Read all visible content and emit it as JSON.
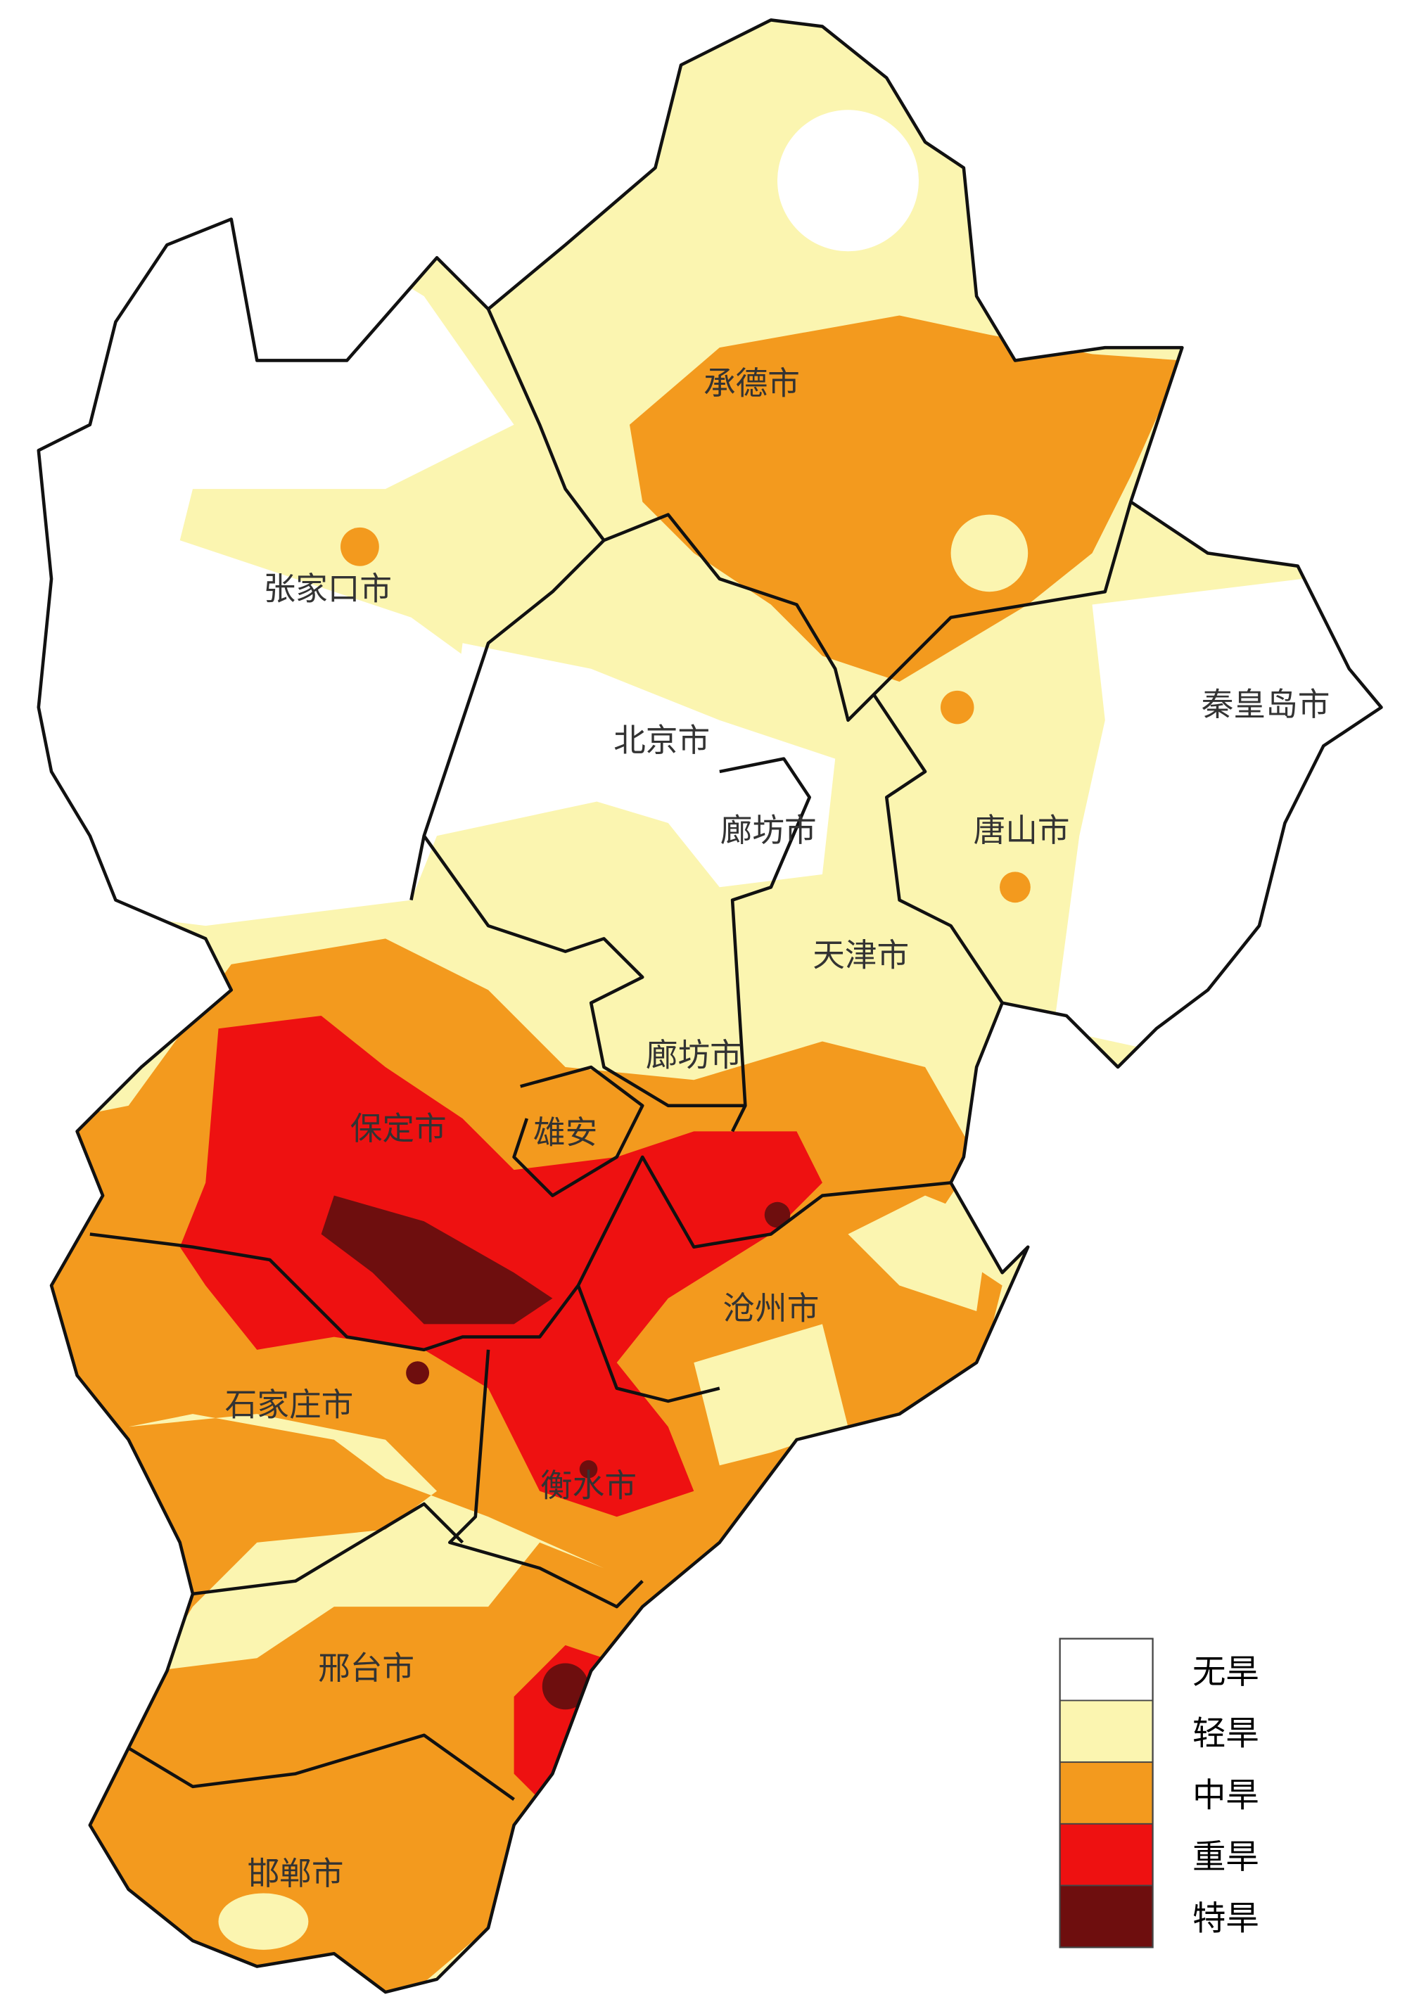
{
  "map": {
    "regions": [
      {
        "label": "承德市"
      },
      {
        "label": "张家口市"
      },
      {
        "label": "北京市"
      },
      {
        "label": "秦皇岛市"
      },
      {
        "label": "廊坊市"
      },
      {
        "label": "唐山市"
      },
      {
        "label": "天津市"
      },
      {
        "label": "廊坊市"
      },
      {
        "label": "保定市"
      },
      {
        "label": "雄安"
      },
      {
        "label": "沧州市"
      },
      {
        "label": "石家庄市"
      },
      {
        "label": "衡水市"
      },
      {
        "label": "邢台市"
      },
      {
        "label": "邯郸市"
      }
    ]
  },
  "legend": [
    {
      "label": "无旱",
      "color": "#ffffff"
    },
    {
      "label": "轻旱",
      "color": "#fbf5b0"
    },
    {
      "label": "中旱",
      "color": "#f39a1e"
    },
    {
      "label": "重旱",
      "color": "#ee1111"
    },
    {
      "label": "特旱",
      "color": "#6e0e0e"
    }
  ]
}
